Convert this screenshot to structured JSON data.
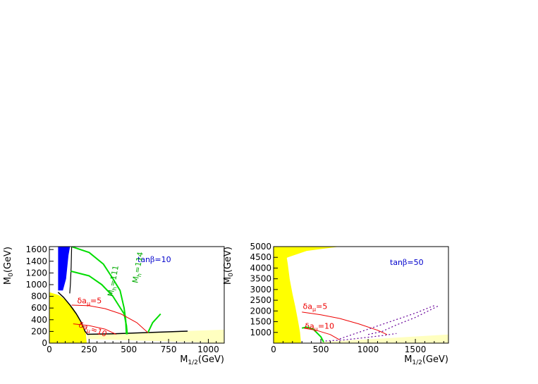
{
  "chart_data": [
    {
      "type": "line",
      "xlabel": "M",
      "xlabel_sub": "1/2",
      "xlabel_unit": "(GeV)",
      "ylabel": "M",
      "ylabel_sub": "0",
      "ylabel_unit": "(GeV)",
      "xlim": [
        0,
        1100
      ],
      "ylim": [
        0,
        1650
      ],
      "x_ticks": [
        0,
        250,
        500,
        750,
        1000
      ],
      "x_tick_labels": [
        "0",
        "250",
        "500",
        "750",
        "1000"
      ],
      "y_ticks": [
        0,
        200,
        400,
        600,
        800,
        1000,
        1200,
        1400,
        1600
      ],
      "y_tick_labels": [
        "0",
        "200",
        "400",
        "600",
        "800",
        "1000",
        "1200",
        "1400",
        "1600"
      ],
      "tanb_prefix": "tan",
      "tanb_symbol": "β",
      "tanb_value": "=10",
      "regions": [
        {
          "color": "#ffff00",
          "points": [
            [
              0,
              0
            ],
            [
              0,
              870
            ],
            [
              60,
              820
            ],
            [
              110,
              720
            ],
            [
              150,
              600
            ],
            [
              185,
              450
            ],
            [
              210,
              300
            ],
            [
              230,
              150
            ],
            [
              235,
              0
            ]
          ]
        },
        {
          "color": "#ffffc0",
          "points": [
            [
              240,
              70
            ],
            [
              1100,
              0
            ],
            [
              1100,
              230
            ],
            [
              240,
              150
            ]
          ]
        },
        {
          "color": "#0000ff",
          "points": [
            [
              55,
              1650
            ],
            [
              130,
              1650
            ],
            [
              120,
              1500
            ],
            [
              105,
              1100
            ],
            [
              85,
              900
            ],
            [
              55,
              900
            ]
          ]
        }
      ],
      "series": [
        {
          "color": "#000000",
          "width": 1.5,
          "points": [
            [
              55,
              870
            ],
            [
              90,
              780
            ],
            [
              130,
              650
            ],
            [
              170,
              500
            ],
            [
              200,
              360
            ],
            [
              225,
              200
            ],
            [
              240,
              150
            ],
            [
              400,
              160
            ],
            [
              600,
              180
            ],
            [
              870,
              205
            ]
          ]
        },
        {
          "color": "#000000",
          "width": 1.2,
          "points": [
            [
              140,
              1650
            ],
            [
              137,
              1300
            ],
            [
              132,
              1000
            ],
            [
              128,
              850
            ]
          ]
        },
        {
          "color": "#00dd00",
          "width": 2,
          "points": [
            [
              140,
              1650
            ],
            [
              250,
              1550
            ],
            [
              340,
              1350
            ],
            [
              400,
              1100
            ],
            [
              445,
              900
            ],
            [
              470,
              600
            ],
            [
              480,
              400
            ],
            [
              485,
              150
            ]
          ]
        },
        {
          "color": "#00dd00",
          "width": 2,
          "points": [
            [
              135,
              1230
            ],
            [
              250,
              1150
            ],
            [
              330,
              1000
            ],
            [
              400,
              800
            ],
            [
              470,
              500
            ],
            [
              485,
              300
            ],
            [
              490,
              150
            ]
          ]
        },
        {
          "color": "#00dd00",
          "width": 2,
          "points": [
            [
              620,
              180
            ],
            [
              650,
              350
            ],
            [
              700,
              500
            ]
          ]
        },
        {
          "color": "#ee0000",
          "width": 1,
          "points": [
            [
              140,
              650
            ],
            [
              250,
              640
            ],
            [
              350,
              590
            ],
            [
              450,
              500
            ],
            [
              550,
              350
            ],
            [
              620,
              180
            ]
          ]
        },
        {
          "color": "#ee0000",
          "width": 1,
          "points": [
            [
              150,
              330
            ],
            [
              250,
              300
            ],
            [
              350,
              240
            ],
            [
              420,
              150
            ]
          ]
        }
      ],
      "annotations": [
        {
          "text": "δa",
          "sub": "μ",
          "rest": "=5",
          "x": 175,
          "y": 680,
          "color": "#ee0000",
          "rotate": 0
        },
        {
          "text": "δa",
          "sub": "μ",
          "rest": "=10",
          "x": 180,
          "y": 280,
          "color": "#ee0000",
          "rotate": -20
        },
        {
          "text": "M",
          "sub": "h",
          "rest": "=111",
          "x": 400,
          "y": 790,
          "color": "#00aa00",
          "rotate": 80
        },
        {
          "text": "M",
          "sub": "h",
          "rest": "=114",
          "x": 555,
          "y": 1020,
          "color": "#00aa00",
          "rotate": 80
        }
      ]
    },
    {
      "type": "line",
      "xlabel": "M",
      "xlabel_sub": "1/2",
      "xlabel_unit": "(GeV)",
      "ylabel": "M",
      "ylabel_sub": "0",
      "ylabel_unit": "(GeV)",
      "xlim": [
        0,
        1850
      ],
      "ylim": [
        500,
        5000
      ],
      "x_ticks": [
        0,
        500,
        1000,
        1500
      ],
      "x_tick_labels": [
        "0",
        "500",
        "1000",
        "1500"
      ],
      "y_ticks": [
        1000,
        1500,
        2000,
        2500,
        3000,
        3500,
        4000,
        4500,
        5000
      ],
      "y_tick_labels": [
        "1000",
        "1500",
        "2000",
        "2500",
        "3000",
        "3500",
        "4000",
        "4500",
        "5000"
      ],
      "tanb_prefix": "tan",
      "tanb_symbol": "β",
      "tanb_value": "=50",
      "regions": [
        {
          "color": "#ffff00",
          "points": [
            [
              0,
              500
            ],
            [
              0,
              5000
            ],
            [
              120,
              5000
            ],
            [
              150,
              4200
            ],
            [
              170,
              3500
            ],
            [
              200,
              2800
            ],
            [
              230,
              2200
            ],
            [
              260,
              1500
            ],
            [
              280,
              1000
            ],
            [
              290,
              500
            ]
          ]
        },
        {
          "color": "#ffff00",
          "points": [
            [
              30,
              4200
            ],
            [
              150,
              4500
            ],
            [
              350,
              4800
            ],
            [
              700,
              5000
            ],
            [
              120,
              5000
            ],
            [
              40,
              4800
            ]
          ]
        },
        {
          "color": "#ffffc0",
          "points": [
            [
              500,
              550
            ],
            [
              1850,
              900
            ],
            [
              1850,
              500
            ],
            [
              500,
              500
            ]
          ]
        }
      ],
      "series": [
        {
          "color": "#00dd00",
          "width": 2,
          "points": [
            [
              300,
              1200
            ],
            [
              350,
              1250
            ],
            [
              420,
              1150
            ],
            [
              500,
              800
            ],
            [
              530,
              550
            ]
          ]
        },
        {
          "color": "#ee0000",
          "width": 1,
          "points": [
            [
              300,
              1950
            ],
            [
              500,
              1820
            ],
            [
              700,
              1650
            ],
            [
              900,
              1400
            ],
            [
              1100,
              1100
            ],
            [
              1200,
              900
            ]
          ]
        },
        {
          "color": "#ee0000",
          "width": 1,
          "points": [
            [
              320,
              1200
            ],
            [
              450,
              1100
            ],
            [
              600,
              900
            ],
            [
              700,
              650
            ]
          ]
        },
        {
          "color": "#660099",
          "width": 1.2,
          "dash": "2 3",
          "points": [
            [
              700,
              700
            ],
            [
              900,
              1000
            ],
            [
              1100,
              1300
            ],
            [
              1300,
              1600
            ],
            [
              1500,
              1900
            ],
            [
              1700,
              2250
            ]
          ]
        },
        {
          "color": "#660099",
          "width": 1.2,
          "dash": "2 3",
          "points": [
            [
              1000,
              900
            ],
            [
              1150,
              1050
            ],
            [
              1300,
              1350
            ],
            [
              1500,
              1700
            ],
            [
              1750,
              2250
            ]
          ]
        },
        {
          "color": "#660099",
          "width": 1.2,
          "dash": "2 3",
          "points": [
            [
              550,
              600
            ],
            [
              750,
              650
            ],
            [
              950,
              750
            ],
            [
              1150,
              850
            ],
            [
              1300,
              950
            ]
          ]
        }
      ],
      "annotations": [
        {
          "text": "δa",
          "sub": "μ",
          "rest": "=5",
          "x": 310,
          "y": 2100,
          "color": "#ee0000",
          "rotate": 0
        },
        {
          "text": "δa",
          "sub": "μ",
          "rest": "=10",
          "x": 330,
          "y": 1180,
          "color": "#ee0000",
          "rotate": 0
        }
      ]
    }
  ]
}
